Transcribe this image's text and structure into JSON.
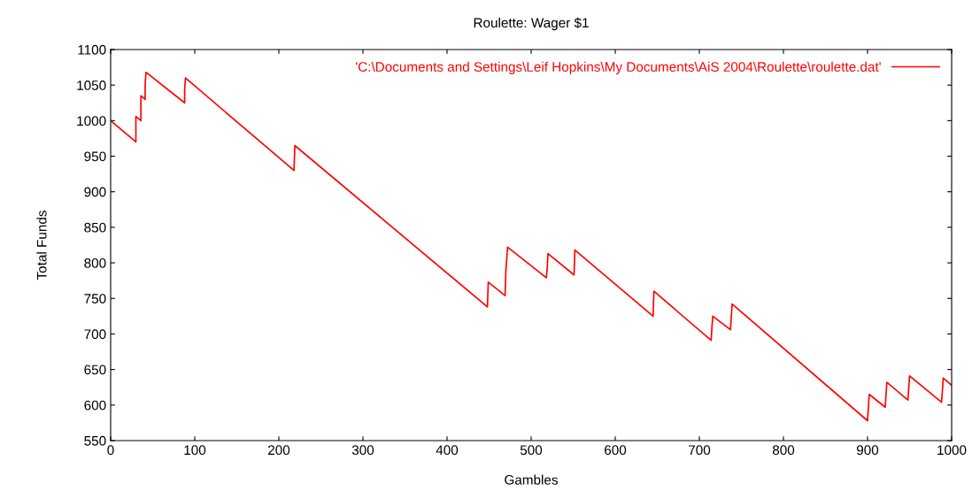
{
  "chart_data": {
    "type": "line",
    "title": "Roulette: Wager $1",
    "xlabel": "Gambles",
    "ylabel": "Total Funds",
    "x": [
      0,
      30,
      30,
      36,
      36,
      41,
      41,
      42,
      88,
      88,
      89,
      218,
      219,
      448,
      449,
      469,
      470,
      472,
      518,
      519,
      520,
      551,
      552,
      645,
      646,
      714,
      715,
      716,
      737,
      739,
      900,
      902,
      921,
      923,
      948,
      950,
      988,
      989,
      990,
      1000
    ],
    "series": [
      {
        "name": "'C:\\Documents and Settings\\Leif Hopkins\\My Documents\\AiS 2004\\Roulette\\roulette.dat'",
        "color": "#ff0000",
        "values": [
          1000,
          970,
          1006,
          1000,
          1035,
          1030,
          1050,
          1068,
          1025,
          1045,
          1060,
          930,
          965,
          738,
          773,
          754,
          790,
          822,
          779,
          790,
          813,
          783,
          818,
          725,
          760,
          691,
          710,
          725,
          706,
          742,
          578,
          615,
          597,
          632,
          607,
          641,
          604,
          620,
          638,
          628
        ]
      }
    ],
    "xlim": [
      0,
      1000
    ],
    "ylim": [
      550,
      1100
    ],
    "xticks": [
      0,
      100,
      200,
      300,
      400,
      500,
      600,
      700,
      800,
      900,
      1000
    ],
    "yticks": [
      550,
      600,
      650,
      700,
      750,
      800,
      850,
      900,
      950,
      1000,
      1050,
      1100
    ],
    "grid": false,
    "legend": "top right",
    "marker": "none",
    "line_style": "solid"
  }
}
